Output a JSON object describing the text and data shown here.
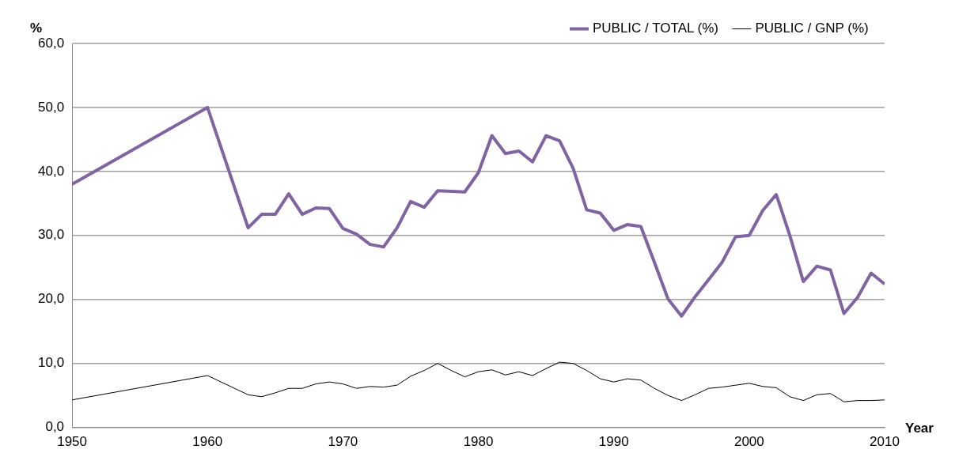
{
  "chart_data": {
    "type": "line",
    "xlabel": "Year",
    "ylabel": "%",
    "x": [
      1950,
      1960,
      1963,
      1964,
      1965,
      1966,
      1967,
      1968,
      1969,
      1970,
      1971,
      1972,
      1973,
      1974,
      1975,
      1976,
      1977,
      1978,
      1979,
      1980,
      1981,
      1982,
      1983,
      1984,
      1985,
      1986,
      1987,
      1988,
      1989,
      1990,
      1991,
      1992,
      1993,
      1994,
      1995,
      1996,
      1997,
      1998,
      1999,
      2000,
      2001,
      2002,
      2003,
      2004,
      2005,
      2006,
      2007,
      2008,
      2009,
      2010
    ],
    "series": [
      {
        "name": "PUBLIC / TOTAL (%)",
        "color": "#8064a2",
        "values": [
          38.0,
          50.0,
          31.2,
          33.3,
          33.3,
          36.5,
          33.3,
          34.3,
          34.2,
          31.1,
          30.2,
          28.6,
          28.2,
          31.2,
          35.3,
          34.4,
          37.0,
          36.9,
          36.8,
          39.8,
          45.6,
          42.8,
          43.2,
          41.5,
          45.6,
          44.8,
          40.5,
          34.0,
          33.5,
          30.8,
          31.7,
          31.4,
          25.8,
          20.1,
          17.4,
          20.4,
          23.1,
          25.8,
          29.8,
          30.0,
          33.9,
          36.4,
          30.0,
          22.8,
          25.2,
          24.6,
          17.8,
          20.3,
          24.1,
          22.4
        ]
      },
      {
        "name": "PUBLIC / GNP (%)",
        "color": "#000000",
        "values": [
          4.3,
          8.1,
          5.1,
          4.8,
          5.4,
          6.1,
          6.1,
          6.8,
          7.1,
          6.8,
          6.1,
          6.4,
          6.3,
          6.6,
          8.0,
          8.9,
          10.0,
          8.9,
          7.9,
          8.7,
          9.0,
          8.2,
          8.7,
          8.1,
          9.2,
          10.2,
          10.0,
          8.9,
          7.6,
          7.1,
          7.6,
          7.4,
          6.1,
          5.0,
          4.2,
          5.1,
          6.1,
          6.3,
          6.6,
          6.9,
          6.4,
          6.2,
          4.8,
          4.2,
          5.1,
          5.3,
          4.0,
          4.2,
          4.2,
          4.3
        ]
      }
    ],
    "xlim": [
      1950,
      2010
    ],
    "xticks": [
      1950,
      1960,
      1970,
      1980,
      1990,
      2000,
      2010
    ],
    "ylim": [
      0,
      60
    ],
    "yticks": [
      {
        "value": 0,
        "label": "0,0"
      },
      {
        "value": 10,
        "label": "10,0"
      },
      {
        "value": 20,
        "label": "20,0"
      },
      {
        "value": 30,
        "label": "30,0"
      },
      {
        "value": 40,
        "label": "40,0"
      },
      {
        "value": 50,
        "label": "50,0"
      },
      {
        "value": 60,
        "label": "60,0"
      }
    ],
    "grid": "y",
    "legend": "top right",
    "marker": "none",
    "line_style": "solid"
  }
}
